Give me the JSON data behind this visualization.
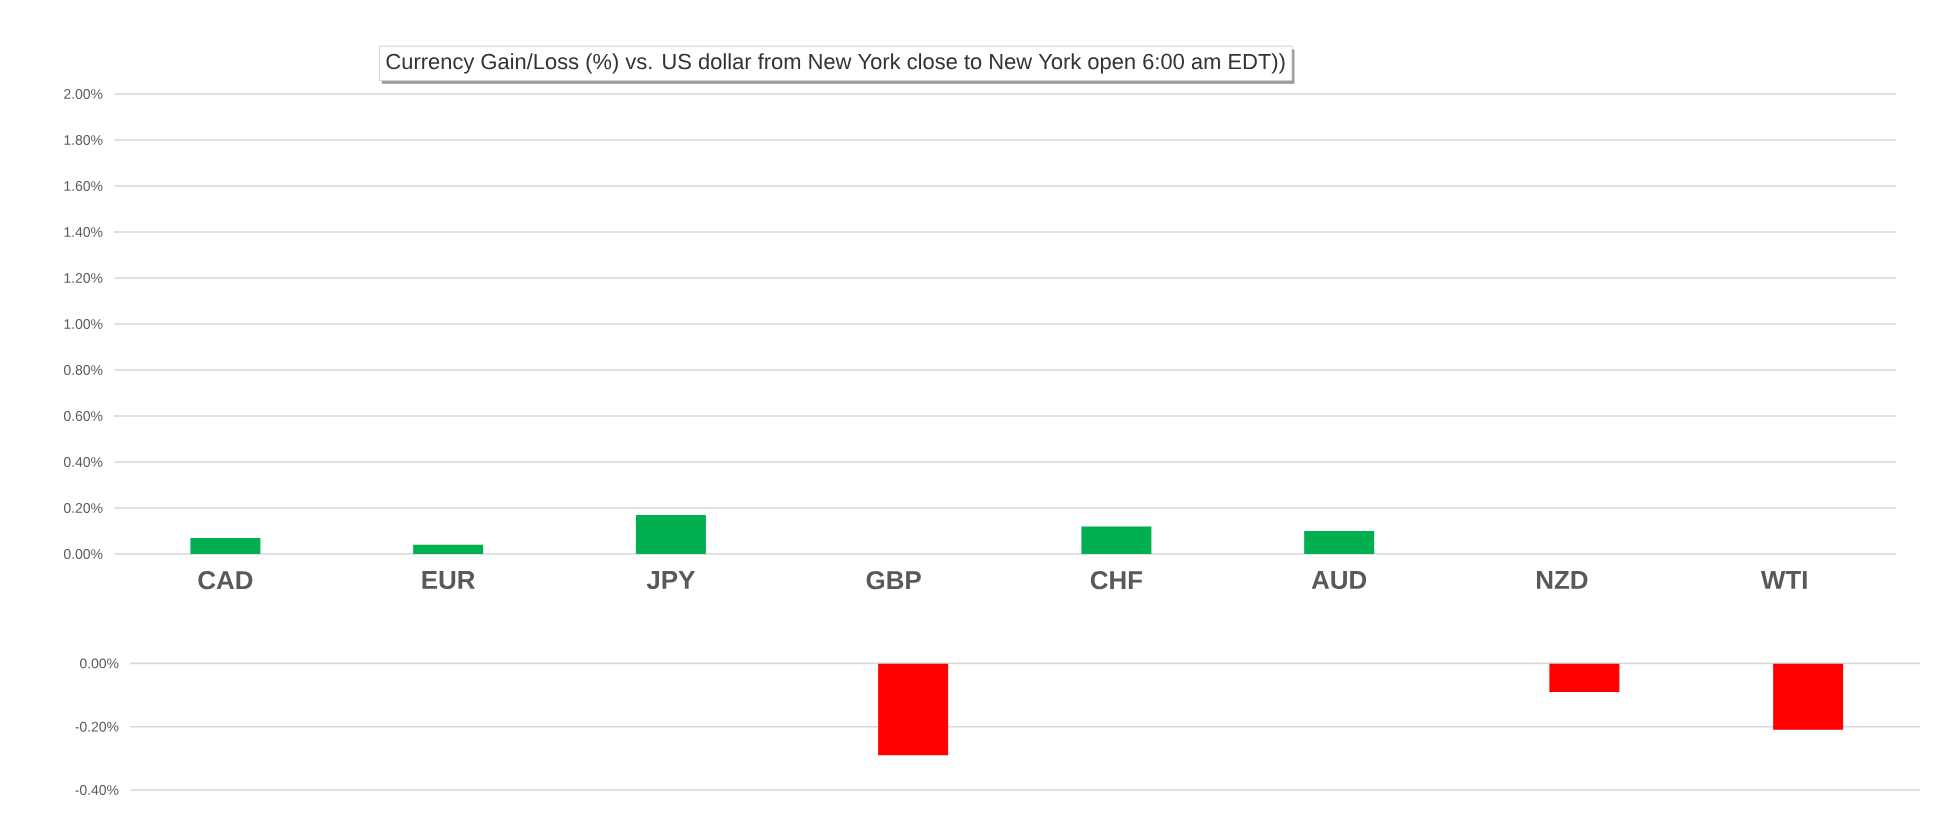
{
  "chart_data": [
    {
      "type": "bar",
      "title": "Currency Gain/Loss (%) vs. US dollar from New York close to New York open 6:00 am EDT))",
      "categories": [
        "CAD",
        "EUR",
        "JPY",
        "GBP",
        "CHF",
        "AUD",
        "NZD",
        "WTI"
      ],
      "values": [
        0.07,
        0.04,
        0.17,
        null,
        0.12,
        0.1,
        null,
        null
      ],
      "color": "#00b050",
      "ylim": [
        0,
        2
      ],
      "yticks": [
        {
          "value": 0,
          "label": "0.00%"
        },
        {
          "value": 0.2,
          "label": "0.20%"
        },
        {
          "value": 0.4,
          "label": "0.40%"
        },
        {
          "value": 0.6,
          "label": "0.60%"
        },
        {
          "value": 0.8,
          "label": "0.80%"
        },
        {
          "value": 1.0,
          "label": "1.00%"
        },
        {
          "value": 1.2,
          "label": "1.20%"
        },
        {
          "value": 1.4,
          "label": "1.40%"
        },
        {
          "value": 1.6,
          "label": "1.60%"
        },
        {
          "value": 1.8,
          "label": "1.80%"
        },
        {
          "value": 2.0,
          "label": "2.00%"
        }
      ],
      "grid": "y"
    },
    {
      "type": "bar",
      "categories": [
        null,
        null,
        null,
        null,
        null,
        null,
        null,
        null
      ],
      "values": [
        null,
        null,
        null,
        -0.29,
        null,
        null,
        -0.09,
        -0.21
      ],
      "color": "#ff0000",
      "ylim": [
        -0.4,
        0
      ],
      "yticks": [
        {
          "value": -0.4,
          "label": "-0.40%"
        },
        {
          "value": -0.2,
          "label": "-0.20%"
        },
        {
          "value": 0,
          "label": "0.00%"
        }
      ],
      "grid": "y",
      "tick_labels": "y"
    }
  ]
}
